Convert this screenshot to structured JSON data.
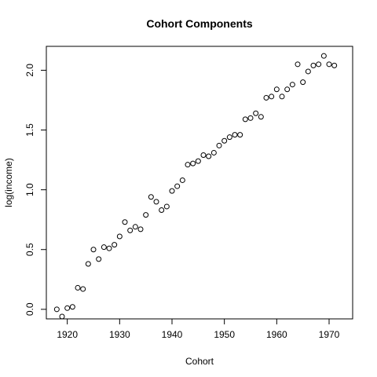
{
  "chart_data": {
    "type": "scatter",
    "title": "Cohort Components",
    "xlabel": "Cohort",
    "ylabel": "log(income)",
    "xlim": [
      1916,
      1974.5
    ],
    "ylim": [
      -0.08,
      2.2
    ],
    "xticks": [
      1920,
      1930,
      1940,
      1950,
      1960,
      1970
    ],
    "yticks": [
      0.0,
      0.5,
      1.0,
      1.5,
      2.0
    ],
    "ytick_labels": [
      "0.0",
      "0.5",
      "1.0",
      "1.5",
      "2.0"
    ],
    "grid": false,
    "legend": "none",
    "marker": "open-circle",
    "color": "#000000",
    "x": [
      1918,
      1919,
      1920,
      1921,
      1922,
      1923,
      1924,
      1925,
      1926,
      1927,
      1928,
      1929,
      1930,
      1931,
      1932,
      1933,
      1934,
      1935,
      1936,
      1937,
      1938,
      1939,
      1940,
      1941,
      1942,
      1943,
      1944,
      1945,
      1946,
      1947,
      1948,
      1949,
      1950,
      1951,
      1952,
      1953,
      1954,
      1955,
      1956,
      1957,
      1958,
      1959,
      1960,
      1961,
      1962,
      1963,
      1964,
      1965,
      1966,
      1967,
      1968,
      1969,
      1970,
      1971
    ],
    "y": [
      0.0,
      -0.06,
      0.01,
      0.02,
      0.18,
      0.17,
      0.38,
      0.5,
      0.42,
      0.52,
      0.51,
      0.54,
      0.61,
      0.73,
      0.66,
      0.69,
      0.67,
      0.79,
      0.94,
      0.9,
      0.83,
      0.86,
      0.99,
      1.03,
      1.08,
      1.21,
      1.22,
      1.24,
      1.29,
      1.28,
      1.31,
      1.37,
      1.41,
      1.44,
      1.46,
      1.46,
      1.59,
      1.6,
      1.64,
      1.61,
      1.77,
      1.78,
      1.84,
      1.78,
      1.84,
      1.88,
      2.05,
      1.9,
      1.99,
      2.04,
      2.05,
      2.12,
      2.05,
      2.04
    ]
  }
}
